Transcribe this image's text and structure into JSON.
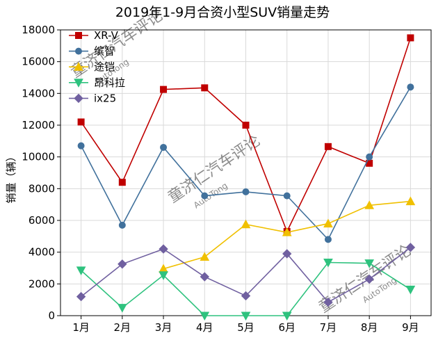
{
  "chart_data": {
    "type": "line",
    "title": "2019年1-9月合资小型SUV销量走势",
    "ylabel": "销量（辆）",
    "xlabel": "",
    "categories": [
      "1月",
      "2月",
      "3月",
      "4月",
      "5月",
      "6月",
      "7月",
      "8月",
      "9月"
    ],
    "ylim": [
      0,
      18000
    ],
    "yticks": [
      0,
      2000,
      4000,
      6000,
      8000,
      10000,
      12000,
      14000,
      16000,
      18000
    ],
    "grid": true,
    "legend_position": "top-left",
    "series": [
      {
        "name": "XR-V",
        "color": "#c00000",
        "marker": "square",
        "values": [
          12200,
          8400,
          14250,
          14350,
          12000,
          5300,
          10650,
          9600,
          17500
        ]
      },
      {
        "name": "缤智",
        "color": "#41719c",
        "marker": "circle",
        "values": [
          10700,
          5700,
          10600,
          7550,
          7800,
          7550,
          4800,
          10000,
          14400
        ]
      },
      {
        "name": "途铠",
        "color": "#f0c000",
        "marker": "triangle-up",
        "values": [
          null,
          null,
          2950,
          3700,
          5750,
          5250,
          5800,
          6950,
          7200
        ]
      },
      {
        "name": "昂科拉",
        "color": "#2ec27e",
        "marker": "triangle-down",
        "values": [
          2850,
          500,
          2550,
          0,
          0,
          0,
          3350,
          3300,
          1650
        ]
      },
      {
        "name": "ix25",
        "color": "#7060a0",
        "marker": "diamond",
        "values": [
          1200,
          3250,
          4200,
          2450,
          1250,
          3900,
          850,
          2300,
          4300
        ]
      }
    ]
  },
  "watermarks": [
    "童济仁汽车评论",
    "AutoTong"
  ]
}
